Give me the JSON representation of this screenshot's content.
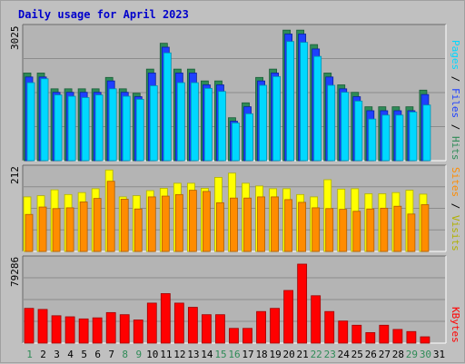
{
  "title": "Daily usage for April 2023",
  "colors": {
    "title": "#0000cc",
    "hits": "#2e8b57",
    "hits_dark": "#1a5c38",
    "files": "#1e40ff",
    "files_dark": "#0a1fa0",
    "pages": "#00d8ff",
    "pages_dark": "#0090b0",
    "visits": "#ffff00",
    "visits_dark": "#b0b000",
    "sites": "#ff8c00",
    "sites_dark": "#b05c00",
    "kbytes": "#ff0000",
    "kbytes_dark": "#a00000",
    "panel_bg": "#b4b4b4",
    "day_label_weekday": "#000000",
    "day_label_weekend": "#2e8b57"
  },
  "chart_data": [
    {
      "type": "bar",
      "name": "usage-hits-files-pages",
      "y_max_label": "3025",
      "ylim": [
        0,
        3025
      ],
      "right_label": {
        "parts": [
          {
            "text": "Pages",
            "color": "#00d8ff"
          },
          {
            "text": " / ",
            "color": "#000000"
          },
          {
            "text": "Files",
            "color": "#1e40ff"
          },
          {
            "text": " / ",
            "color": "#000000"
          },
          {
            "text": "Hits",
            "color": "#2e8b57"
          }
        ]
      },
      "categories": [
        "1",
        "2",
        "3",
        "4",
        "5",
        "6",
        "7",
        "8",
        "9",
        "10",
        "11",
        "12",
        "13",
        "14",
        "15",
        "16",
        "17",
        "18",
        "19",
        "20",
        "21",
        "22",
        "23",
        "24",
        "25",
        "26",
        "27",
        "28",
        "29",
        "30",
        "31"
      ],
      "series": [
        {
          "name": "Hits",
          "values": [
            2000,
            2000,
            1640,
            1640,
            1640,
            1640,
            1900,
            1640,
            1540,
            2090,
            2680,
            2090,
            2090,
            1820,
            1820,
            980,
            1320,
            1900,
            2090,
            2980,
            2980,
            2650,
            2000,
            1730,
            1560,
            1230,
            1230,
            1230,
            1230,
            1610,
            0
          ]
        },
        {
          "name": "Files",
          "values": [
            1910,
            1910,
            1560,
            1560,
            1560,
            1560,
            1820,
            1560,
            1460,
            2000,
            2590,
            2000,
            2000,
            1730,
            1730,
            900,
            1230,
            1820,
            2000,
            2890,
            2890,
            2550,
            1910,
            1640,
            1460,
            1140,
            1140,
            1140,
            1140,
            1510,
            0
          ]
        },
        {
          "name": "Pages",
          "values": [
            1780,
            1870,
            1500,
            1470,
            1440,
            1500,
            1640,
            1470,
            1400,
            1710,
            2460,
            1780,
            1780,
            1650,
            1580,
            860,
            1070,
            1720,
            1920,
            2720,
            2700,
            2380,
            1720,
            1560,
            1360,
            950,
            1040,
            1040,
            1110,
            1270,
            0
          ]
        }
      ]
    },
    {
      "type": "bar",
      "name": "usage-visits-sites",
      "y_max_label": "212",
      "ylim": [
        0,
        212
      ],
      "right_label": {
        "parts": [
          {
            "text": "Sites",
            "color": "#ff8c00"
          },
          {
            "text": " / ",
            "color": "#000000"
          },
          {
            "text": "Visits",
            "color": "#b0b000"
          }
        ]
      },
      "categories": [
        "1",
        "2",
        "3",
        "4",
        "5",
        "6",
        "7",
        "8",
        "9",
        "10",
        "11",
        "12",
        "13",
        "14",
        "15",
        "16",
        "17",
        "18",
        "19",
        "20",
        "21",
        "22",
        "23",
        "24",
        "25",
        "26",
        "27",
        "28",
        "29",
        "30",
        "31"
      ],
      "series": [
        {
          "name": "Visits",
          "values": [
            140,
            143,
            158,
            146,
            151,
            161,
            209,
            140,
            143,
            156,
            162,
            175,
            175,
            162,
            190,
            201,
            175,
            168,
            161,
            161,
            146,
            140,
            184,
            160,
            161,
            148,
            148,
            151,
            157,
            147,
            0
          ]
        },
        {
          "name": "Sites",
          "values": [
            95,
            114,
            110,
            112,
            127,
            136,
            180,
            134,
            109,
            140,
            142,
            146,
            157,
            154,
            125,
            137,
            137,
            140,
            140,
            133,
            126,
            112,
            110,
            108,
            103,
            109,
            111,
            116,
            96,
            120,
            0
          ]
        }
      ]
    },
    {
      "type": "bar",
      "name": "usage-kbytes",
      "y_max_label": "79286",
      "ylim": [
        0,
        79286
      ],
      "right_label": {
        "parts": [
          {
            "text": "KBytes",
            "color": "#ff0000"
          }
        ]
      },
      "categories": [
        "1",
        "2",
        "3",
        "4",
        "5",
        "6",
        "7",
        "8",
        "9",
        "10",
        "11",
        "12",
        "13",
        "14",
        "15",
        "16",
        "17",
        "18",
        "19",
        "20",
        "21",
        "22",
        "23",
        "24",
        "25",
        "26",
        "27",
        "28",
        "29",
        "30",
        "31"
      ],
      "series": [
        {
          "name": "KBytes",
          "values": [
            33000,
            32000,
            26000,
            25000,
            23000,
            24000,
            29000,
            27000,
            22000,
            38000,
            47000,
            38000,
            34000,
            27000,
            27000,
            14000,
            14000,
            30000,
            33000,
            50000,
            75000,
            45000,
            30000,
            21000,
            17000,
            10000,
            17000,
            13000,
            11000,
            6000,
            0
          ]
        }
      ]
    }
  ]
}
